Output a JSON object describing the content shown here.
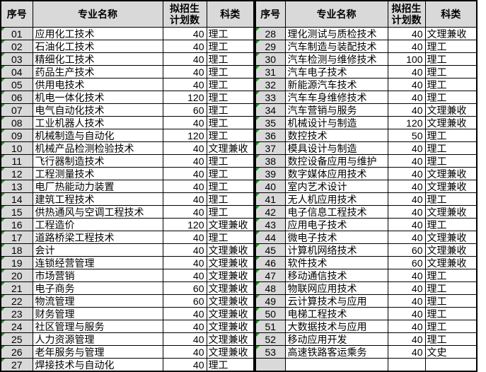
{
  "headers": {
    "no": "序号",
    "major": "专业名称",
    "plan_line1": "拟招生",
    "plan_line2": "计划数",
    "category": "科类"
  },
  "colors": {
    "header_bg": "#d9d9d9",
    "index_bg": "#d9d9d9",
    "border": "#000000",
    "triangle_green": "#218a21"
  },
  "icons": {
    "error_indicator": "green-triangle"
  },
  "tables": [
    {
      "id": "left",
      "trailing_empty_rows": 0,
      "rows": [
        {
          "no": "01",
          "major": "应用化工技术",
          "plan": "40",
          "category": "理工"
        },
        {
          "no": "02",
          "major": "石油化工技术",
          "plan": "40",
          "category": "理工"
        },
        {
          "no": "03",
          "major": "精细化工技术",
          "plan": "40",
          "category": "理工"
        },
        {
          "no": "04",
          "major": "药品生产技术",
          "plan": "40",
          "category": "理工"
        },
        {
          "no": "05",
          "major": "供用电技术",
          "plan": "40",
          "category": "理工"
        },
        {
          "no": "06",
          "major": "机电一体化技术",
          "plan": "120",
          "category": "理工"
        },
        {
          "no": "07",
          "major": "电气自动化技术",
          "plan": "60",
          "category": "理工"
        },
        {
          "no": "08",
          "major": "工业机器人技术",
          "plan": "40",
          "category": "理工"
        },
        {
          "no": "09",
          "major": "机械制造与自动化",
          "plan": "120",
          "category": "理工"
        },
        {
          "no": "10",
          "major": "机械产品检测检验技术",
          "plan": "40",
          "category": "文理兼收"
        },
        {
          "no": "11",
          "major": "飞行器制造技术",
          "plan": "40",
          "category": "理工"
        },
        {
          "no": "12",
          "major": "工程测量技术",
          "plan": "40",
          "category": "理工"
        },
        {
          "no": "13",
          "major": "电厂热能动力装置",
          "plan": "40",
          "category": "理工"
        },
        {
          "no": "14",
          "major": "建筑工程技术",
          "plan": "40",
          "category": "理工"
        },
        {
          "no": "15",
          "major": "供热通风与空调工程技术",
          "plan": "40",
          "category": "理工"
        },
        {
          "no": "16",
          "major": "工程造价",
          "plan": "120",
          "category": "文理兼收"
        },
        {
          "no": "17",
          "major": "道路桥梁工程技术",
          "plan": "40",
          "category": "理工"
        },
        {
          "no": "18",
          "major": "会计",
          "plan": "40",
          "category": "文理兼收"
        },
        {
          "no": "19",
          "major": "连锁经营管理",
          "plan": "40",
          "category": "文理兼收"
        },
        {
          "no": "20",
          "major": "市场营销",
          "plan": "40",
          "category": "文理兼收"
        },
        {
          "no": "21",
          "major": "电子商务",
          "plan": "60",
          "category": "文理兼收"
        },
        {
          "no": "22",
          "major": "物流管理",
          "plan": "60",
          "category": "文理兼收"
        },
        {
          "no": "23",
          "major": "财务管理",
          "plan": "40",
          "category": "文理兼收"
        },
        {
          "no": "24",
          "major": "社区管理与服务",
          "plan": "40",
          "category": "文理兼收"
        },
        {
          "no": "25",
          "major": "人力资源管理",
          "plan": "40",
          "category": "文理兼收"
        },
        {
          "no": "26",
          "major": "老年服务与管理",
          "plan": "40",
          "category": "文理兼收"
        },
        {
          "no": "27",
          "major": "焊接技术与自动化",
          "plan": "40",
          "category": "理工"
        }
      ]
    },
    {
      "id": "right",
      "trailing_empty_rows": 1,
      "rows": [
        {
          "no": "28",
          "major": "理化测试与质检技术",
          "plan": "40",
          "category": "文理兼收"
        },
        {
          "no": "29",
          "major": "汽车制造与装配技术",
          "plan": "40",
          "category": "理工"
        },
        {
          "no": "30",
          "major": "汽车检测与维修技术",
          "plan": "100",
          "category": "理工"
        },
        {
          "no": "31",
          "major": "汽车电子技术",
          "plan": "40",
          "category": "理工"
        },
        {
          "no": "32",
          "major": "新能源汽车技术",
          "plan": "40",
          "category": "理工"
        },
        {
          "no": "33",
          "major": "汽车车身维修技术",
          "plan": "40",
          "category": "理工"
        },
        {
          "no": "34",
          "major": "汽车营销与服务",
          "plan": "40",
          "category": "文理兼收"
        },
        {
          "no": "35",
          "major": "机械设计与制造",
          "plan": "120",
          "category": "文理兼收"
        },
        {
          "no": "36",
          "major": "数控技术",
          "plan": "50",
          "category": "理工"
        },
        {
          "no": "37",
          "major": "模具设计与制造",
          "plan": "40",
          "category": "理工"
        },
        {
          "no": "38",
          "major": "数控设备应用与维护",
          "plan": "40",
          "category": "理工"
        },
        {
          "no": "39",
          "major": "数字媒体应用技术",
          "plan": "40",
          "category": "文理兼收"
        },
        {
          "no": "40",
          "major": "室内艺术设计",
          "plan": "40",
          "category": "文理兼收"
        },
        {
          "no": "41",
          "major": "无人机应用技术",
          "plan": "40",
          "category": "理工"
        },
        {
          "no": "42",
          "major": "电子信息工程技术",
          "plan": "40",
          "category": "文理兼收"
        },
        {
          "no": "43",
          "major": "应用电子技术",
          "plan": "40",
          "category": "理工"
        },
        {
          "no": "44",
          "major": "微电子技术",
          "plan": "40",
          "category": "文理兼收"
        },
        {
          "no": "45",
          "major": "计算机网络技术",
          "plan": "60",
          "category": "文理兼收"
        },
        {
          "no": "46",
          "major": "软件技术",
          "plan": "60",
          "category": "文理兼收"
        },
        {
          "no": "47",
          "major": "移动通信技术",
          "plan": "40",
          "category": "理工"
        },
        {
          "no": "48",
          "major": "物联网应用技术",
          "plan": "40",
          "category": "理工"
        },
        {
          "no": "49",
          "major": "云计算技术与应用",
          "plan": "40",
          "category": "理工"
        },
        {
          "no": "50",
          "major": "电梯工程技术",
          "plan": "40",
          "category": "理工"
        },
        {
          "no": "51",
          "major": "大数据技术与应用",
          "plan": "40",
          "category": "理工"
        },
        {
          "no": "52",
          "major": "移动应用开发",
          "plan": "40",
          "category": "理工"
        },
        {
          "no": "53",
          "major": "高速铁路客运乘务",
          "plan": "40",
          "category": "文史"
        }
      ]
    }
  ]
}
